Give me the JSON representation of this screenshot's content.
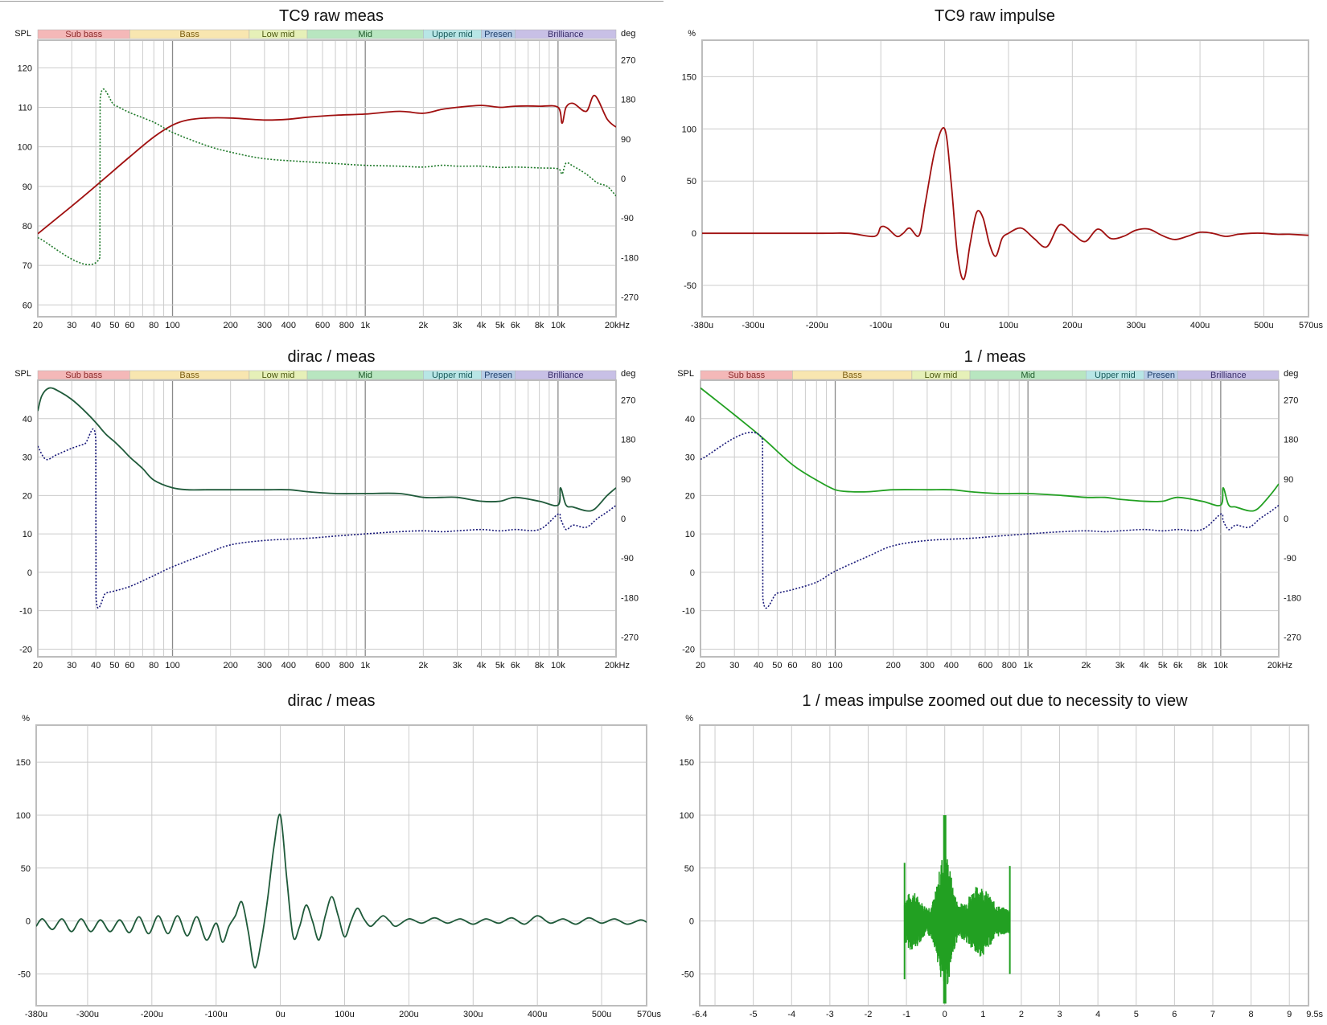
{
  "bands": [
    {
      "label": "Sub bass",
      "from": 20,
      "to": 60,
      "color": "#f4b8b8",
      "text_color": "#8a2a2a"
    },
    {
      "label": "Bass",
      "from": 60,
      "to": 250,
      "color": "#f8e6b0",
      "text_color": "#7a5d10"
    },
    {
      "label": "Low mid",
      "from": 250,
      "to": 500,
      "color": "#e6f0b8",
      "text_color": "#4d5a12"
    },
    {
      "label": "Mid",
      "from": 500,
      "to": 2000,
      "color": "#b8e6c0",
      "text_color": "#1f5a2a"
    },
    {
      "label": "Upper mid",
      "from": 2000,
      "to": 4000,
      "color": "#b8e6e6",
      "text_color": "#1a5a5a"
    },
    {
      "label": "Presen",
      "from": 4000,
      "to": 6000,
      "color": "#b8cde8",
      "text_color": "#1f3f6a"
    },
    {
      "label": "Brilliance",
      "from": 6000,
      "to": 20000,
      "color": "#c8c0e6",
      "text_color": "#3a2f6a"
    }
  ],
  "freq_ticks": [
    {
      "v": 20,
      "t": "20"
    },
    {
      "v": 30,
      "t": "30"
    },
    {
      "v": 40,
      "t": "40"
    },
    {
      "v": 50,
      "t": "50"
    },
    {
      "v": 60,
      "t": "60"
    },
    {
      "v": 80,
      "t": "80"
    },
    {
      "v": 100,
      "t": "100"
    },
    {
      "v": 200,
      "t": "200"
    },
    {
      "v": 300,
      "t": "300"
    },
    {
      "v": 400,
      "t": "400"
    },
    {
      "v": 600,
      "t": "600"
    },
    {
      "v": 800,
      "t": "800"
    },
    {
      "v": 1000,
      "t": "1k"
    },
    {
      "v": 2000,
      "t": "2k"
    },
    {
      "v": 3000,
      "t": "3k"
    },
    {
      "v": 4000,
      "t": "4k"
    },
    {
      "v": 5000,
      "t": "5k"
    },
    {
      "v": 6000,
      "t": "6k"
    },
    {
      "v": 8000,
      "t": "8k"
    },
    {
      "v": 10000,
      "t": "10k"
    },
    {
      "v": 20000,
      "t": "20kHz"
    }
  ],
  "time_ticks": [
    {
      "v": -380,
      "t": "-380u"
    },
    {
      "v": -300,
      "t": "-300u"
    },
    {
      "v": -200,
      "t": "-200u"
    },
    {
      "v": -100,
      "t": "-100u"
    },
    {
      "v": 0,
      "t": "0u"
    },
    {
      "v": 100,
      "t": "100u"
    },
    {
      "v": 200,
      "t": "200u"
    },
    {
      "v": 300,
      "t": "300u"
    },
    {
      "v": 400,
      "t": "400u"
    },
    {
      "v": 500,
      "t": "500u"
    },
    {
      "v": 570,
      "t": "570us"
    }
  ],
  "sec_ticks": [
    {
      "v": -6.4,
      "t": "-6.4"
    },
    {
      "v": -5,
      "t": "-5"
    },
    {
      "v": -4,
      "t": "-4"
    },
    {
      "v": -3,
      "t": "-3"
    },
    {
      "v": -2,
      "t": "-2"
    },
    {
      "v": -1,
      "t": "-1"
    },
    {
      "v": 0,
      "t": "0"
    },
    {
      "v": 1,
      "t": "1"
    },
    {
      "v": 2,
      "t": "2"
    },
    {
      "v": 3,
      "t": "3"
    },
    {
      "v": 4,
      "t": "4"
    },
    {
      "v": 5,
      "t": "5"
    },
    {
      "v": 6,
      "t": "6"
    },
    {
      "v": 7,
      "t": "7"
    },
    {
      "v": 8,
      "t": "8"
    },
    {
      "v": 9,
      "t": "9"
    },
    {
      "v": 9.5,
      "t": "9.5s"
    }
  ],
  "chart_data": [
    {
      "type": "line",
      "title": "TC9 raw meas",
      "xscale": "log",
      "xlim": [
        20,
        20000
      ],
      "left_axis": {
        "label": "SPL",
        "ylim": [
          57,
          127
        ],
        "ticks": [
          60,
          70,
          80,
          90,
          100,
          110,
          120
        ]
      },
      "right_axis": {
        "label": "deg",
        "ylim": [
          -315,
          315
        ],
        "ticks": [
          {
            "v": -270,
            "t": "-270"
          },
          {
            "v": -180,
            "t": "-180"
          },
          {
            "v": -90,
            "t": "-90"
          },
          {
            "v": 0,
            "t": "0"
          },
          {
            "v": 90,
            "t": "90"
          },
          {
            "v": 180,
            "t": "180"
          },
          {
            "v": 270,
            "t": "270"
          }
        ]
      },
      "grid": true,
      "series": [
        {
          "axis": "left",
          "color": "#a01010",
          "dash": false,
          "x": [
            20,
            30,
            42,
            60,
            80,
            100,
            120,
            150,
            200,
            300,
            400,
            500,
            700,
            1000,
            1500,
            2000,
            2500,
            3000,
            4000,
            5000,
            6000,
            8000,
            10000,
            10500,
            11000,
            12000,
            14000,
            15500,
            18000,
            20000
          ],
          "y": [
            78,
            85,
            91,
            97.5,
            102.5,
            105.5,
            106.8,
            107.3,
            107.3,
            106.8,
            107,
            107.5,
            108,
            108.3,
            109,
            108.5,
            109.5,
            110,
            110.5,
            110,
            110.3,
            110.3,
            110,
            106,
            110,
            111,
            109,
            113,
            107,
            105
          ]
        },
        {
          "axis": "right",
          "color": "#1f7a2a",
          "dash": true,
          "x": [
            20,
            42,
            42.1,
            50,
            60,
            80,
            100,
            150,
            200,
            300,
            500,
            700,
            1000,
            1500,
            2000,
            2500,
            3000,
            4000,
            5000,
            6000,
            8000,
            10000,
            10500,
            11000,
            12000,
            14000,
            16000,
            18000,
            20000
          ],
          "y": [
            -135,
            -180,
            180,
            167,
            150,
            128,
            105,
            75,
            60,
            45,
            38,
            34,
            30,
            28,
            26,
            30,
            28,
            28,
            25,
            26,
            24,
            22,
            10,
            35,
            28,
            10,
            -10,
            -18,
            -40
          ]
        }
      ]
    },
    {
      "type": "line",
      "title": "TC9 raw impulse",
      "xlim": [
        -380,
        570
      ],
      "left_axis": {
        "label": "%",
        "ylim": [
          -80,
          185
        ],
        "ticks": [
          -50,
          0,
          50,
          100,
          150
        ]
      },
      "grid": true,
      "series": [
        {
          "color": "#a01010",
          "x": [
            -380,
            -200,
            -150,
            -110,
            -100,
            -90,
            -75,
            -65,
            -55,
            -40,
            -30,
            -15,
            0,
            10,
            20,
            30,
            40,
            50,
            60,
            70,
            80,
            90,
            100,
            120,
            140,
            160,
            180,
            200,
            220,
            240,
            260,
            280,
            300,
            320,
            340,
            360,
            380,
            400,
            420,
            440,
            460,
            480,
            500,
            520,
            540,
            570
          ],
          "y": [
            0,
            0,
            0,
            -3,
            6,
            5,
            -3,
            0,
            5,
            -2,
            30,
            80,
            100,
            50,
            -20,
            -44,
            -10,
            20,
            15,
            -10,
            -22,
            -5,
            0,
            5,
            -5,
            -13,
            8,
            0,
            -8,
            4,
            -5,
            -3,
            3,
            4,
            -2,
            -6,
            -3,
            1,
            0,
            -3,
            -1,
            0,
            0,
            -1,
            -1,
            -2
          ]
        }
      ]
    },
    {
      "type": "line",
      "title": "dirac / meas",
      "xscale": "log",
      "xlim": [
        20,
        20000
      ],
      "left_axis": {
        "label": "SPL",
        "ylim": [
          -22,
          50
        ],
        "ticks": [
          -20,
          -10,
          0,
          10,
          20,
          30,
          40
        ]
      },
      "right_axis": {
        "label": "deg",
        "ylim": [
          -315,
          315
        ],
        "ticks": [
          {
            "v": -270,
            "t": "-270"
          },
          {
            "v": -180,
            "t": "-180"
          },
          {
            "v": -90,
            "t": "-90"
          },
          {
            "v": 0,
            "t": "0"
          },
          {
            "v": 90,
            "t": "90"
          },
          {
            "v": 180,
            "t": "180"
          },
          {
            "v": 270,
            "t": "270"
          }
        ]
      },
      "grid": true,
      "series": [
        {
          "axis": "left",
          "color": "#1f5a3a",
          "dash": false,
          "x": [
            20,
            21,
            23,
            26,
            30,
            35,
            40,
            45,
            50,
            55,
            60,
            70,
            80,
            100,
            120,
            150,
            200,
            300,
            400,
            500,
            700,
            1000,
            1500,
            2000,
            2500,
            3000,
            4000,
            5000,
            6000,
            8000,
            10000,
            10300,
            11000,
            12000,
            14000,
            15500,
            18000,
            20000
          ],
          "y": [
            42,
            46,
            48,
            47,
            45,
            42,
            39,
            36,
            34,
            32,
            30,
            27,
            24,
            22,
            21.5,
            21.5,
            21.5,
            21.5,
            21.5,
            21,
            20.5,
            20.5,
            20.5,
            19.5,
            19.5,
            19.5,
            18.5,
            18.5,
            19.5,
            18.5,
            17.5,
            22,
            17.5,
            17,
            16,
            16.5,
            20,
            22
          ]
        },
        {
          "axis": "right",
          "color": "#1a1a7a",
          "dash": true,
          "x": [
            20,
            22,
            25,
            30,
            35,
            40,
            40.1,
            45,
            50,
            60,
            80,
            100,
            150,
            200,
            300,
            500,
            700,
            1000,
            1500,
            2000,
            2500,
            3000,
            4000,
            5000,
            6000,
            8000,
            10000,
            10300,
            11000,
            12000,
            14000,
            16000,
            18000,
            20000
          ],
          "y": [
            165,
            135,
            145,
            160,
            170,
            180,
            -180,
            -170,
            -165,
            -155,
            -130,
            -110,
            -80,
            -60,
            -50,
            -45,
            -40,
            -35,
            -30,
            -28,
            -30,
            -28,
            -25,
            -28,
            -25,
            -25,
            10,
            0,
            -25,
            -15,
            -20,
            0,
            15,
            30
          ]
        }
      ]
    },
    {
      "type": "line",
      "title": "1 / meas",
      "xscale": "log",
      "xlim": [
        20,
        20000
      ],
      "left_axis": {
        "label": "SPL",
        "ylim": [
          -22,
          50
        ],
        "ticks": [
          -20,
          -10,
          0,
          10,
          20,
          30,
          40
        ]
      },
      "right_axis": {
        "label": "deg",
        "ylim": [
          -315,
          315
        ],
        "ticks": [
          {
            "v": -270,
            "t": "-270"
          },
          {
            "v": -180,
            "t": "-180"
          },
          {
            "v": -90,
            "t": "-90"
          },
          {
            "v": 0,
            "t": "0"
          },
          {
            "v": 90,
            "t": "90"
          },
          {
            "v": 180,
            "t": "180"
          },
          {
            "v": 270,
            "t": "270"
          }
        ]
      },
      "grid": true,
      "series": [
        {
          "axis": "left",
          "color": "#22a022",
          "dash": false,
          "x": [
            20,
            30,
            42,
            60,
            80,
            100,
            120,
            150,
            200,
            300,
            400,
            500,
            700,
            1000,
            1500,
            2000,
            2500,
            3000,
            4000,
            5000,
            6000,
            8000,
            10000,
            10300,
            11000,
            12000,
            14000,
            15500,
            18000,
            20000
          ],
          "y": [
            48,
            41,
            35,
            28,
            24,
            21.5,
            21,
            21,
            21.5,
            21.5,
            21.5,
            21,
            20.5,
            20.5,
            20,
            19.5,
            19.5,
            19,
            18.5,
            18.5,
            19.5,
            18.5,
            17.5,
            22,
            17.5,
            17,
            16,
            16.5,
            20,
            23
          ]
        },
        {
          "axis": "right",
          "color": "#1a1a7a",
          "dash": true,
          "x": [
            20,
            42,
            42.1,
            50,
            60,
            80,
            100,
            150,
            200,
            300,
            500,
            700,
            1000,
            1500,
            2000,
            2500,
            3000,
            4000,
            5000,
            6000,
            8000,
            10000,
            10300,
            11000,
            12000,
            14000,
            16000,
            18000,
            20000
          ],
          "y": [
            135,
            180,
            -180,
            -170,
            -162,
            -145,
            -120,
            -85,
            -62,
            -50,
            -45,
            -40,
            -35,
            -30,
            -28,
            -30,
            -28,
            -25,
            -28,
            -25,
            -25,
            10,
            -5,
            -25,
            -15,
            -20,
            0,
            15,
            30
          ]
        }
      ]
    },
    {
      "type": "line",
      "title": "dirac / meas",
      "xlim": [
        -380,
        570
      ],
      "left_axis": {
        "label": "%",
        "ylim": [
          -80,
          185
        ],
        "ticks": [
          -50,
          0,
          50,
          100,
          150
        ]
      },
      "grid": true,
      "series": [
        {
          "color": "#1f5a3a",
          "x": [
            -380,
            -370,
            -355,
            -340,
            -325,
            -310,
            -295,
            -280,
            -265,
            -250,
            -235,
            -220,
            -205,
            -190,
            -175,
            -160,
            -145,
            -130,
            -115,
            -100,
            -90,
            -80,
            -70,
            -60,
            -50,
            -40,
            -30,
            -20,
            -10,
            0,
            10,
            20,
            30,
            40,
            50,
            60,
            70,
            80,
            90,
            100,
            110,
            120,
            130,
            140,
            150,
            160,
            170,
            180,
            200,
            220,
            240,
            260,
            280,
            300,
            320,
            340,
            360,
            380,
            400,
            420,
            440,
            460,
            480,
            500,
            520,
            540,
            560,
            570
          ],
          "y": [
            -5,
            2,
            -8,
            2,
            -10,
            2,
            -10,
            1,
            -10,
            1,
            -11,
            4,
            -12,
            5,
            -12,
            5,
            -14,
            4,
            -18,
            -2,
            -20,
            -5,
            5,
            18,
            -10,
            -44,
            -20,
            20,
            70,
            100,
            40,
            -15,
            -5,
            15,
            0,
            -18,
            5,
            23,
            5,
            -15,
            0,
            12,
            2,
            -5,
            0,
            5,
            0,
            -5,
            2,
            -2,
            3,
            -2,
            2,
            -3,
            2,
            -2,
            3,
            -3,
            5,
            -2,
            2,
            -3,
            3,
            -2,
            2,
            -3,
            1,
            -1
          ]
        }
      ]
    },
    {
      "type": "line",
      "title": "1 / meas impulse zoomed out due to necessity to view",
      "xlim": [
        -6.4,
        9.5
      ],
      "left_axis": {
        "label": "%",
        "ylim": [
          -80,
          185
        ],
        "ticks": [
          -50,
          0,
          50,
          100,
          150
        ]
      },
      "grid": true,
      "series": [
        {
          "color": "#22a022",
          "dense": true,
          "x_range": [
            -1.05,
            1.7
          ],
          "peak_x": 0,
          "peak_y": 100,
          "neg_peak_y": -78
        }
      ]
    }
  ]
}
